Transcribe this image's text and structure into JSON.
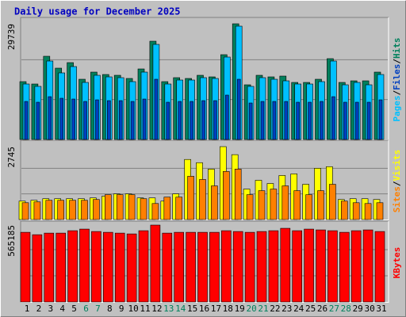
{
  "chart_data": [
    {
      "type": "bar",
      "title": "Daily usage for December 2025",
      "ylim": [
        0,
        30760
      ],
      "yticks": [
        29739
      ],
      "grid": true,
      "series": [
        {
          "name": "Hits",
          "color": "#00805c",
          "values": [
            14870,
            14259,
            21389,
            18333,
            19759,
            15481,
            17315,
            16703,
            16500,
            15685,
            18130,
            25259,
            14870,
            15889,
            15685,
            16500,
            16092,
            21796,
            29739,
            14055,
            16500,
            16092,
            16296,
            14666,
            14666,
            15481,
            20778,
            14666,
            15074,
            15074,
            17315
          ]
        },
        {
          "name": "Files",
          "color": "#0040c0",
          "values": [
            9778,
            9574,
            11000,
            10593,
            10389,
            9778,
            10185,
            9982,
            9982,
            9778,
            10389,
            15481,
            9574,
            9778,
            9778,
            9982,
            9982,
            11407,
            15481,
            9370,
            9778,
            9778,
            9778,
            9574,
            9574,
            9778,
            11000,
            9574,
            9574,
            9574,
            10185
          ]
        },
        {
          "name": "Pages",
          "color": "#00c0ff",
          "values": [
            14259,
            13648,
            20166,
            17111,
            18740,
            14666,
            16500,
            16092,
            15889,
            14870,
            17315,
            24444,
            14259,
            15278,
            15278,
            15889,
            15685,
            21185,
            29129,
            13648,
            15889,
            15481,
            15074,
            14259,
            14259,
            14870,
            20166,
            14055,
            14666,
            14055,
            16703
          ]
        }
      ]
    },
    {
      "type": "bar",
      "ylim": [
        0,
        2895
      ],
      "yticks": [
        2745
      ],
      "grid": true,
      "series": [
        {
          "name": "Visits",
          "color": "#ffff00",
          "values": [
            694,
            724,
            784,
            784,
            784,
            784,
            814,
            875,
            965,
            965,
            814,
            814,
            694,
            965,
            2262,
            2141,
            1900,
            2745,
            2443,
            1146,
            1478,
            1357,
            1659,
            1719,
            1327,
            1930,
            1991,
            754,
            784,
            784,
            754
          ]
        },
        {
          "name": "Sites",
          "color": "#ff8000",
          "values": [
            633,
            664,
            724,
            724,
            724,
            724,
            754,
            935,
            935,
            935,
            784,
            603,
            844,
            844,
            1629,
            1508,
            1267,
            1810,
            1900,
            935,
            1086,
            1146,
            1267,
            1086,
            935,
            1086,
            1327,
            694,
            633,
            603,
            633
          ]
        }
      ]
    },
    {
      "type": "bar",
      "ylim": [
        0,
        576900
      ],
      "yticks": [
        565185
      ],
      "grid": true,
      "categories": [
        "1",
        "2",
        "3",
        "4",
        "5",
        "6",
        "7",
        "8",
        "9",
        "10",
        "11",
        "12",
        "13",
        "14",
        "15",
        "16",
        "17",
        "18",
        "19",
        "20",
        "21",
        "22",
        "23",
        "24",
        "25",
        "26",
        "27",
        "28",
        "29",
        "30",
        "31"
      ],
      "highlight_categories": [
        "6",
        "7",
        "13",
        "14",
        "20",
        "21",
        "27",
        "28"
      ],
      "category_color": "#000000",
      "highlight_color": "#00805c",
      "series": [
        {
          "name": "KBytes",
          "color": "#ff0000",
          "values": [
            512169,
            494508,
            506282,
            506282,
            523943,
            535717,
            518056,
            512169,
            506282,
            500395,
            523943,
            565185,
            506282,
            512169,
            512169,
            512169,
            512169,
            523943,
            518056,
            512169,
            518056,
            523943,
            541604,
            523943,
            535717,
            529830,
            523943,
            512169,
            523943,
            529830,
            518056
          ]
        }
      ]
    }
  ]
}
